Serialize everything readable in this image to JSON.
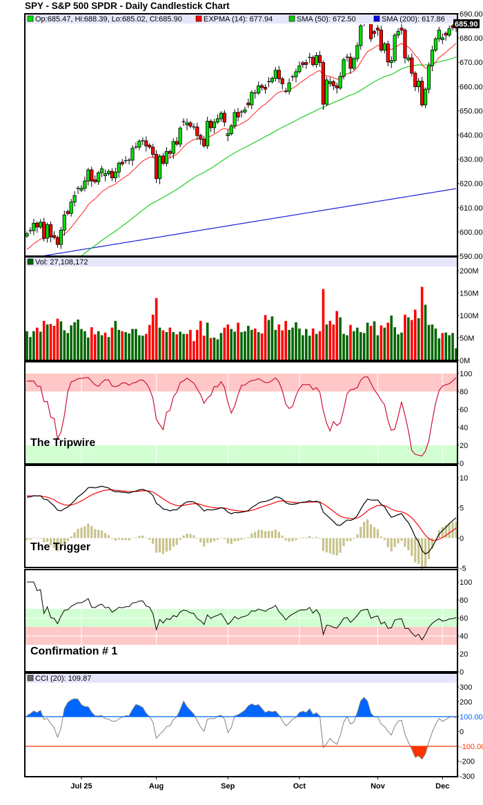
{
  "title": "SPY - S&P 500 SPDR - Daily Candlestick Chart",
  "legend": {
    "ohlc": "Op:685.47, Hi:688.39, Lo:685.02, Cl:685.90",
    "expma": "EXPMA (14): 677.94",
    "sma50": "SMA (50): 672.50",
    "sma200": "SMA (200): 617.86",
    "volume": "Vol: 27,108,172",
    "cci": "CCI (20): 109.87"
  },
  "last_price_label": "685.90",
  "panel_labels": {
    "tripwire": "The Tripwire",
    "trigger": "The Trigger",
    "confirmation": "Confirmation # 1"
  },
  "colors": {
    "up": "#00e000",
    "down": "#ff0000",
    "expma": "#ff2020",
    "sma50": "#22cc22",
    "sma200": "#1a1add",
    "vol_up": "#006400",
    "vol_down": "#ff0000",
    "legend_bg": "#e6e6fa",
    "band_red": "#ffc8c8",
    "band_green": "#d2ffd2",
    "tripwire_line": "#cc1133",
    "macd": "#000000",
    "signal": "#ff0000",
    "hist": "#c8c38c",
    "cci_pos": "#0066ff",
    "cci_neg": "#ff3300",
    "cci_line": "#808080"
  },
  "chart_data": {
    "type": "candlestick",
    "symbol": "SPY",
    "closes": [
      599.3,
      600.5,
      603.6,
      602,
      604,
      597.4,
      603,
      598,
      597.7,
      594.8,
      600.7,
      607,
      607.6,
      612.3,
      615,
      618,
      618,
      621,
      625.6,
      621,
      620.7,
      624.4,
      626,
      624,
      625,
      622.3,
      624.7,
      628.3,
      628,
      629.4,
      629.6,
      634.5,
      635,
      637.4,
      637.6,
      635.5,
      635,
      632,
      622,
      631.3,
      628.3,
      633.2,
      632.4,
      637.3,
      636.2,
      642.8,
      645.5,
      645,
      643.6,
      643.3,
      639.8,
      638.3,
      635.5,
      645.7,
      643,
      645.3,
      646.7,
      649,
      645.3,
      640.5,
      643.8,
      649.3,
      647.4,
      649.5,
      650.4,
      652.4,
      657.6,
      657.3,
      660.3,
      659.6,
      658.9,
      662,
      663.4,
      666.7,
      663.2,
      661.1,
      658,
      661.5,
      664,
      666.1,
      668.5,
      669,
      669.1,
      672,
      669,
      672.8,
      669.9,
      652.7,
      662.7,
      662,
      660.3,
      659.4,
      664.2,
      671.1,
      672.1,
      667.5,
      671.5,
      676.9,
      685,
      687.1,
      688,
      679.7,
      681.9,
      683.3,
      675,
      677.6,
      670.1,
      670.7,
      681.2,
      682.8,
      683.3,
      671.8,
      671.8,
      665.5,
      659.9,
      662.2,
      652.4,
      658.9,
      668.6,
      675,
      679.7,
      683.3,
      680.1,
      681.2,
      683.8,
      684.3,
      685.9
    ],
    "direction": "gxgrgrgrrrggrggxgggrrggggrggrxxgxgxrrrrgrgrgrgxgrxrrrgrgggrgggrxgrgxgrrxggrrxgxggrrxrgrrggrrggxrgggxxrrrrgrgggrrgrrgrggggggrgrg",
    "volumes_millions": [
      65,
      52,
      65,
      73,
      64,
      88,
      80,
      81,
      77,
      93,
      87,
      67,
      61,
      78,
      85,
      91,
      70,
      65,
      51,
      74,
      58,
      65,
      56,
      62,
      52,
      73,
      88,
      68,
      65,
      63,
      60,
      70,
      70,
      56,
      55,
      59,
      79,
      102,
      139,
      73,
      67,
      63,
      73,
      63,
      58,
      64,
      59,
      59,
      68,
      43,
      68,
      88,
      55,
      84,
      50,
      51,
      47,
      61,
      73,
      80,
      70,
      64,
      84,
      63,
      65,
      77,
      68,
      71,
      63,
      60,
      101,
      90,
      98,
      68,
      80,
      67,
      88,
      68,
      73,
      85,
      71,
      56,
      70,
      55,
      71,
      59,
      65,
      159,
      80,
      88,
      80,
      110,
      96,
      59,
      56,
      79,
      65,
      73,
      63,
      61,
      84,
      77,
      87,
      56,
      78,
      73,
      84,
      100,
      74,
      58,
      62,
      102,
      96,
      90,
      113,
      94,
      164,
      124,
      79,
      80,
      71,
      49,
      61,
      62,
      56,
      61,
      27
    ],
    "sma200_range": [
      589.0,
      617.86
    ],
    "price_ylim": [
      590,
      690
    ],
    "price_ticks": [
      "690.00",
      "680.00",
      "670.00",
      "660.00",
      "650.00",
      "640.00",
      "630.00",
      "620.00",
      "610.00",
      "600.00",
      "590.00"
    ],
    "volume_ylim": [
      0,
      200
    ],
    "volume_ticks": [
      "200M",
      "150M",
      "100M",
      "50M",
      "0M"
    ],
    "tripwire_ylim": [
      0,
      100
    ],
    "tripwire_ticks": [
      "100",
      "80",
      "60",
      "40",
      "20",
      "0"
    ],
    "trigger_ylim": [
      -5,
      10
    ],
    "trigger_ticks": [
      "10",
      "5",
      "0",
      "-5"
    ],
    "confirmation_ylim": [
      0,
      100
    ],
    "confirmation_ticks": [
      "100",
      "80",
      "60",
      "40",
      "20",
      "0"
    ],
    "cci_ylim": [
      -300,
      300
    ],
    "cci_ticks": [
      "300",
      "200",
      "100.00",
      "0",
      "-100.00",
      "-200",
      "-300"
    ],
    "date_labels": [
      {
        "label": "Jul 25",
        "index": 16
      },
      {
        "label": "Aug",
        "index": 38
      },
      {
        "label": "Sep",
        "index": 59
      },
      {
        "label": "Oct",
        "index": 80
      },
      {
        "label": "Nov",
        "index": 103
      },
      {
        "label": "Dec",
        "index": 122
      }
    ]
  }
}
